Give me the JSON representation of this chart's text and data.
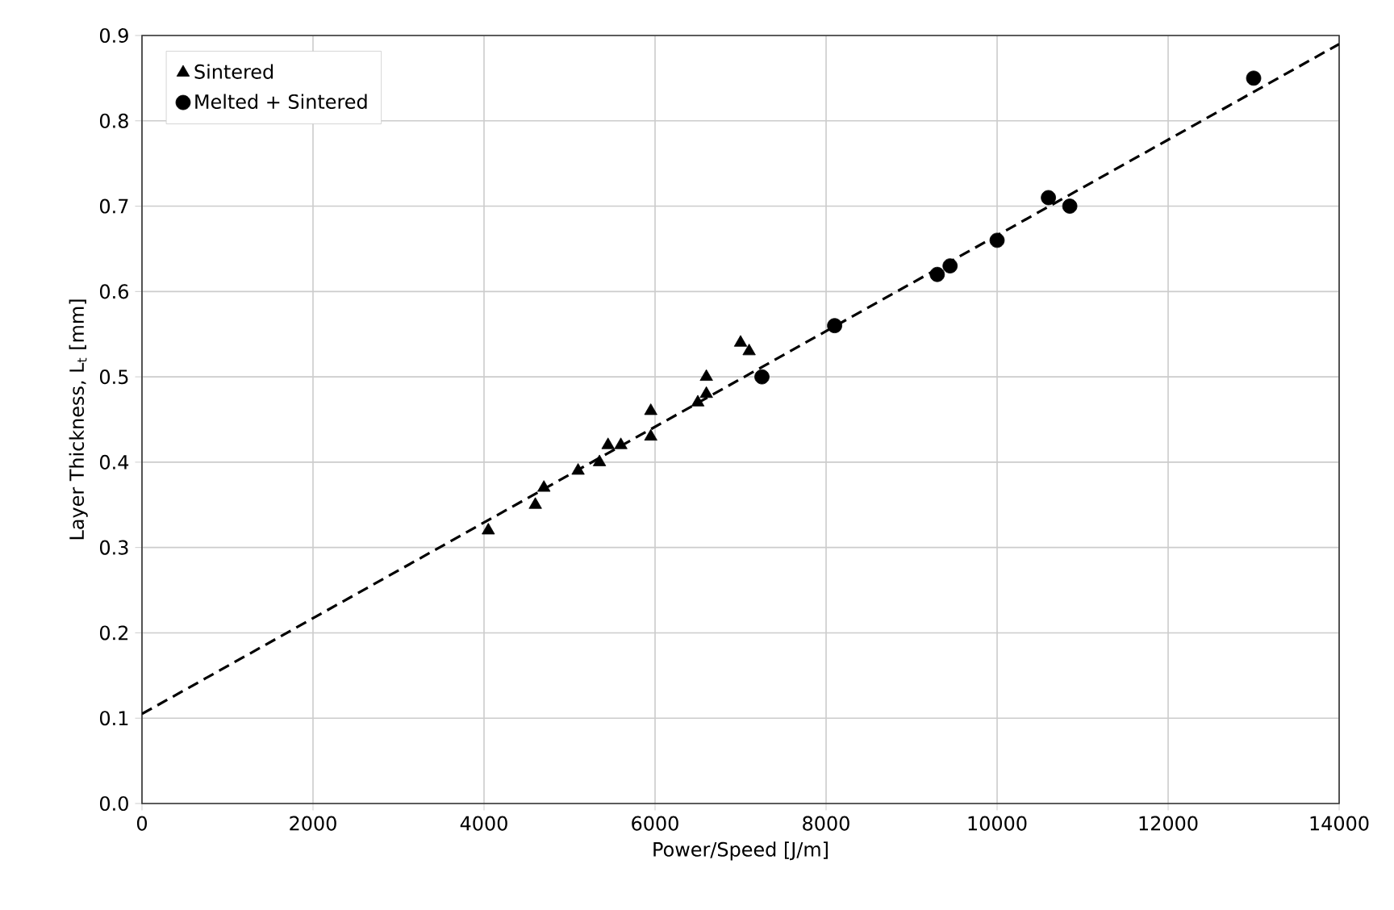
{
  "chart_data": {
    "type": "scatter",
    "xlabel": "Power/Speed [J/m]",
    "ylabel": "Layer Thickness,  L$_{t}$ [mm]",
    "xlim": [
      0,
      14000
    ],
    "ylim": [
      0,
      0.9
    ],
    "xticks": [
      0,
      2000,
      4000,
      6000,
      8000,
      10000,
      12000,
      14000
    ],
    "yticks": [
      {
        "value": 0,
        "label": "0.0"
      },
      0.1,
      0.2,
      0.3,
      0.4,
      0.5,
      0.6,
      0.7,
      0.8,
      0.9
    ],
    "grid": true,
    "legend": "top left",
    "series": [
      {
        "name": "Sintered",
        "color": "#000000",
        "marker": "triangle",
        "x": [
          4050,
          4600,
          4700,
          5100,
          5350,
          5450,
          5600,
          5950,
          5950,
          6500,
          6600,
          6600,
          7000,
          7100
        ],
        "values": [
          0.32,
          0.35,
          0.37,
          0.39,
          0.4,
          0.42,
          0.42,
          0.43,
          0.46,
          0.47,
          0.48,
          0.5,
          0.54,
          0.53
        ]
      },
      {
        "name": "Melted + Sintered",
        "color": "#000000",
        "marker": "circle",
        "x": [
          7250,
          8100,
          9300,
          9450,
          10000,
          10600,
          10850,
          13000
        ],
        "values": [
          0.5,
          0.56,
          0.62,
          0.63,
          0.66,
          0.71,
          0.7,
          0.85
        ]
      },
      {
        "type": "line",
        "color": "#000000",
        "line_style": "dashed",
        "marker": "none",
        "x": [
          0,
          14000
        ],
        "values": [
          0.105,
          0.89
        ]
      }
    ]
  }
}
